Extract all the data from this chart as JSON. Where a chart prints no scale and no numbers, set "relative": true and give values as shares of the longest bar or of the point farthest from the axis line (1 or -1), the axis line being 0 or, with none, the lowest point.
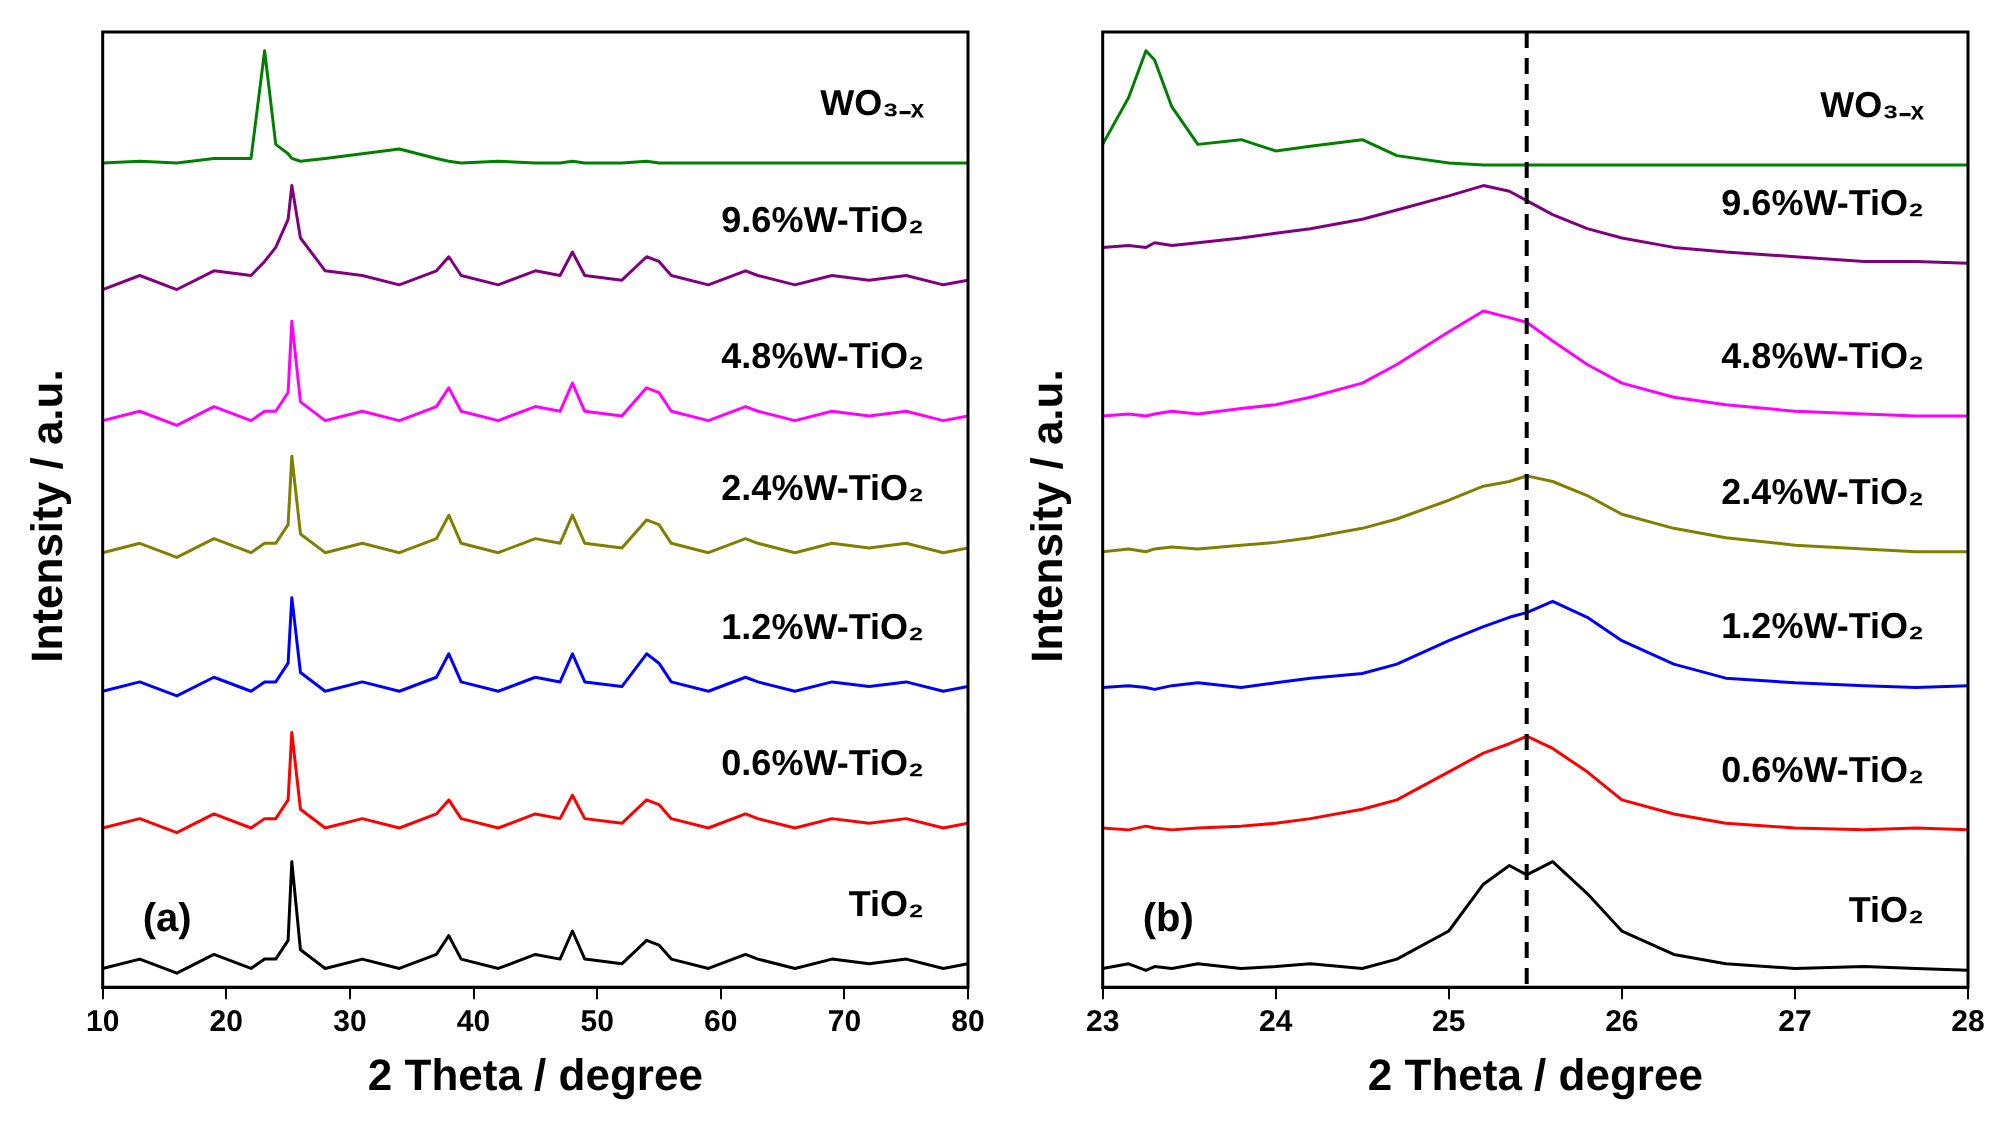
{
  "chart_data": [
    {
      "type": "line",
      "relative": true,
      "xlabel": "2 Theta / degree",
      "ylabel": "Intensity / a.u.",
      "xlim": [
        10,
        80
      ],
      "xticks": [
        10,
        20,
        30,
        40,
        50,
        60,
        70,
        80
      ],
      "legend": false,
      "grid": false,
      "annotations": [
        "(a)"
      ],
      "x": [
        10,
        13,
        16,
        19,
        22,
        23.1,
        24,
        25,
        25.3,
        26,
        28,
        31,
        34,
        37,
        38,
        39,
        42,
        45,
        47,
        48,
        49,
        52,
        54,
        55,
        56,
        59,
        62,
        63,
        66,
        69,
        72,
        75,
        78,
        80
      ],
      "series": [
        {
          "name": "TiO₂",
          "color": "#000000",
          "values": [
            0.02,
            0.03,
            0.015,
            0.035,
            0.02,
            0.03,
            0.03,
            0.05,
            0.134,
            0.04,
            0.02,
            0.03,
            0.02,
            0.035,
            0.055,
            0.03,
            0.02,
            0.035,
            0.03,
            0.06,
            0.03,
            0.025,
            0.05,
            0.045,
            0.03,
            0.02,
            0.035,
            0.03,
            0.02,
            0.03,
            0.025,
            0.03,
            0.02,
            0.025
          ]
        },
        {
          "name": "0.6%W-TiO₂",
          "color": "#ff0000",
          "values": [
            0.17,
            0.18,
            0.165,
            0.185,
            0.17,
            0.18,
            0.18,
            0.2,
            0.272,
            0.19,
            0.17,
            0.18,
            0.17,
            0.185,
            0.2,
            0.18,
            0.17,
            0.185,
            0.18,
            0.205,
            0.18,
            0.175,
            0.2,
            0.195,
            0.18,
            0.17,
            0.185,
            0.18,
            0.17,
            0.18,
            0.175,
            0.18,
            0.17,
            0.175
          ]
        },
        {
          "name": "1.2%W-TiO₂",
          "color": "#0000ff",
          "values": [
            0.316,
            0.326,
            0.311,
            0.331,
            0.316,
            0.326,
            0.326,
            0.346,
            0.416,
            0.336,
            0.316,
            0.326,
            0.316,
            0.331,
            0.356,
            0.326,
            0.316,
            0.331,
            0.326,
            0.356,
            0.326,
            0.321,
            0.356,
            0.346,
            0.326,
            0.316,
            0.331,
            0.326,
            0.316,
            0.326,
            0.321,
            0.326,
            0.316,
            0.321
          ]
        },
        {
          "name": "2.4%W-TiO₂",
          "color": "#808000",
          "values": [
            0.464,
            0.474,
            0.459,
            0.479,
            0.464,
            0.474,
            0.474,
            0.494,
            0.567,
            0.484,
            0.464,
            0.474,
            0.464,
            0.479,
            0.504,
            0.474,
            0.464,
            0.479,
            0.474,
            0.504,
            0.474,
            0.469,
            0.499,
            0.494,
            0.474,
            0.464,
            0.479,
            0.474,
            0.464,
            0.474,
            0.469,
            0.474,
            0.464,
            0.469
          ]
        },
        {
          "name": "4.8%W-TiO₂",
          "color": "#ff00ff",
          "values": [
            0.605,
            0.615,
            0.6,
            0.62,
            0.605,
            0.615,
            0.615,
            0.635,
            0.711,
            0.625,
            0.605,
            0.615,
            0.605,
            0.62,
            0.64,
            0.615,
            0.605,
            0.62,
            0.615,
            0.645,
            0.615,
            0.61,
            0.64,
            0.635,
            0.615,
            0.605,
            0.62,
            0.615,
            0.605,
            0.615,
            0.61,
            0.615,
            0.605,
            0.61
          ]
        },
        {
          "name": "9.6%W-TiO₂",
          "color": "#800080",
          "values": [
            0.745,
            0.76,
            0.745,
            0.765,
            0.76,
            0.775,
            0.79,
            0.82,
            0.856,
            0.8,
            0.765,
            0.76,
            0.75,
            0.765,
            0.78,
            0.76,
            0.75,
            0.765,
            0.76,
            0.785,
            0.76,
            0.755,
            0.78,
            0.775,
            0.76,
            0.75,
            0.765,
            0.76,
            0.75,
            0.76,
            0.755,
            0.76,
            0.75,
            0.755
          ]
        },
        {
          "name": "WO₃₋ₓ",
          "color": "#008000",
          "values": [
            0.88,
            0.882,
            0.88,
            0.885,
            0.885,
            1.0,
            0.9,
            0.89,
            0.885,
            0.882,
            0.885,
            0.89,
            0.895,
            0.885,
            0.882,
            0.88,
            0.882,
            0.88,
            0.88,
            0.882,
            0.88,
            0.88,
            0.882,
            0.88,
            0.88,
            0.88,
            0.88,
            0.88,
            0.88,
            0.88,
            0.88,
            0.88,
            0.88,
            0.88
          ]
        }
      ]
    },
    {
      "type": "line",
      "relative": true,
      "xlabel": "2 Theta / degree",
      "ylabel": "Intensity / a.u.",
      "xlim": [
        23,
        28
      ],
      "xticks": [
        23,
        24,
        25,
        26,
        27,
        28
      ],
      "legend": false,
      "grid": false,
      "annotations": [
        "(b)"
      ],
      "ref_lines": [
        {
          "axis": "x",
          "value": 25.45,
          "color": "#000000",
          "line_style": "dashed"
        }
      ],
      "x": [
        23,
        23.15,
        23.25,
        23.3,
        23.4,
        23.55,
        23.8,
        24,
        24.2,
        24.5,
        24.7,
        25,
        25.2,
        25.35,
        25.45,
        25.6,
        25.8,
        26,
        26.3,
        26.6,
        27,
        27.4,
        27.7,
        28
      ],
      "series": [
        {
          "name": "TiO₂",
          "color": "#000000",
          "values": [
            0.02,
            0.025,
            0.018,
            0.022,
            0.02,
            0.025,
            0.02,
            0.022,
            0.025,
            0.02,
            0.03,
            0.06,
            0.11,
            0.13,
            0.12,
            0.134,
            0.1,
            0.06,
            0.035,
            0.025,
            0.02,
            0.022,
            0.02,
            0.018
          ]
        },
        {
          "name": "0.6%W-TiO₂",
          "color": "#ff0000",
          "values": [
            0.17,
            0.168,
            0.172,
            0.17,
            0.168,
            0.17,
            0.172,
            0.175,
            0.18,
            0.19,
            0.2,
            0.23,
            0.25,
            0.26,
            0.268,
            0.255,
            0.23,
            0.2,
            0.185,
            0.175,
            0.17,
            0.168,
            0.17,
            0.168
          ]
        },
        {
          "name": "1.2%W-TiO₂",
          "color": "#0000ff",
          "values": [
            0.32,
            0.322,
            0.32,
            0.318,
            0.322,
            0.325,
            0.32,
            0.325,
            0.33,
            0.335,
            0.345,
            0.37,
            0.385,
            0.395,
            0.4,
            0.412,
            0.395,
            0.37,
            0.345,
            0.33,
            0.325,
            0.322,
            0.32,
            0.322
          ]
        },
        {
          "name": "2.4%W-TiO₂",
          "color": "#808000",
          "values": [
            0.465,
            0.468,
            0.465,
            0.468,
            0.47,
            0.468,
            0.472,
            0.475,
            0.48,
            0.49,
            0.5,
            0.52,
            0.535,
            0.54,
            0.546,
            0.54,
            0.525,
            0.505,
            0.49,
            0.48,
            0.472,
            0.468,
            0.465,
            0.465
          ]
        },
        {
          "name": "4.8%W-TiO₂",
          "color": "#ff00ff",
          "values": [
            0.61,
            0.612,
            0.61,
            0.612,
            0.615,
            0.612,
            0.618,
            0.622,
            0.63,
            0.645,
            0.665,
            0.7,
            0.722,
            0.715,
            0.71,
            0.69,
            0.665,
            0.645,
            0.63,
            0.622,
            0.615,
            0.612,
            0.61,
            0.61
          ]
        },
        {
          "name": "9.6%W-TiO₂",
          "color": "#800080",
          "values": [
            0.79,
            0.792,
            0.79,
            0.795,
            0.792,
            0.795,
            0.8,
            0.805,
            0.81,
            0.82,
            0.83,
            0.845,
            0.856,
            0.85,
            0.84,
            0.825,
            0.81,
            0.8,
            0.79,
            0.785,
            0.78,
            0.775,
            0.775,
            0.773
          ]
        },
        {
          "name": "WO₃₋ₓ",
          "color": "#008000",
          "values": [
            0.9,
            0.95,
            1.0,
            0.99,
            0.94,
            0.9,
            0.905,
            0.893,
            0.898,
            0.905,
            0.888,
            0.88,
            0.878,
            0.878,
            0.878,
            0.878,
            0.878,
            0.878,
            0.878,
            0.878,
            0.878,
            0.878,
            0.878,
            0.878
          ]
        }
      ]
    }
  ]
}
